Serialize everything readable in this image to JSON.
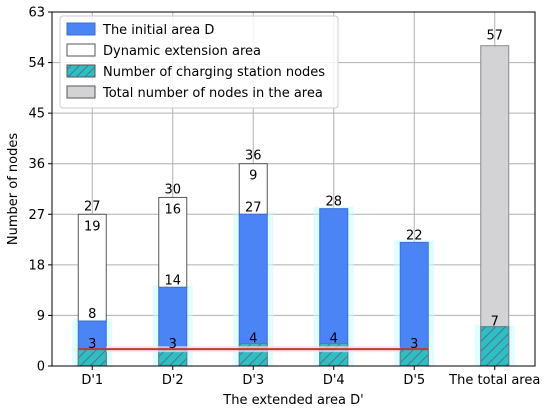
{
  "chart_data": {
    "type": "bar",
    "xlabel": "The extended area D'",
    "ylabel": "Number of nodes",
    "ylim": [
      0,
      63
    ],
    "yticks": [
      0,
      9,
      18,
      27,
      36,
      45,
      54,
      63
    ],
    "grid": true,
    "legend_position": "upper-left",
    "categories": [
      "D'1",
      "D'2",
      "D'3",
      "D'4",
      "D'5",
      "The total area"
    ],
    "series": [
      {
        "name": "The initial area D",
        "color": "#4a84f5",
        "values": [
          8,
          14,
          27,
          28,
          22,
          null
        ]
      },
      {
        "name": "Dynamic extension area",
        "color": "#ffffff",
        "values": [
          19,
          16,
          9,
          0,
          0,
          null
        ]
      },
      {
        "name": "Number of charging station nodes",
        "color": "#2fbfbf",
        "values": [
          3,
          3,
          4,
          4,
          3,
          7
        ]
      },
      {
        "name": "Total number of nodes in the area",
        "color": "#d3d3d6",
        "values": [
          null,
          null,
          null,
          null,
          null,
          57
        ]
      }
    ],
    "stack_totals": [
      27,
      30,
      36,
      28,
      22,
      null
    ],
    "data_labels": {
      "initial": [
        "8",
        "14",
        "27",
        "28",
        "22",
        ""
      ],
      "extension": [
        "19",
        "16",
        "9",
        "",
        "",
        ""
      ],
      "totals": [
        "27",
        "30",
        "36",
        "",
        "",
        "57"
      ],
      "charging": [
        "3",
        "3",
        "4",
        "4",
        "3",
        "7"
      ]
    },
    "reference_line": {
      "value": 3,
      "color": "#c0392b"
    }
  }
}
